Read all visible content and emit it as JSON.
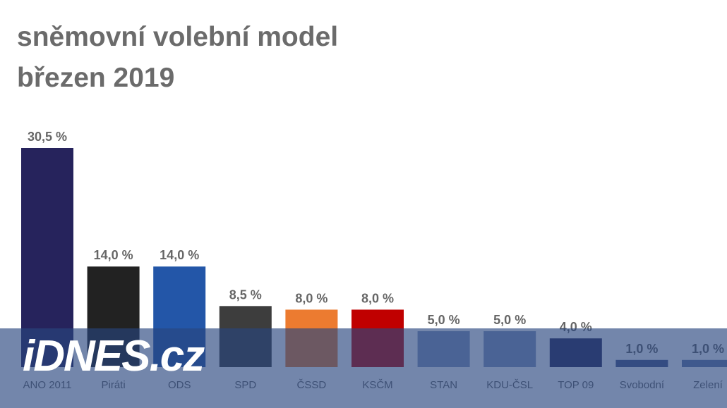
{
  "chart_data": {
    "type": "bar",
    "title": "sněmovní volební model",
    "subtitle": "březen 2019",
    "categories": [
      "ANO 2011",
      "Piráti",
      "ODS",
      "SPD",
      "ČSSD",
      "KSČM",
      "STAN",
      "KDU-ČSL",
      "TOP 09",
      "Svobodní",
      "Zelení"
    ],
    "values": [
      30.5,
      14.0,
      14.0,
      8.5,
      8.0,
      8.0,
      5.0,
      5.0,
      4.0,
      1.0,
      1.0
    ],
    "data_labels": [
      "30,5 %",
      "14,0 %",
      "14,0 %",
      "8,5 %",
      "8,0 %",
      "8,0 %",
      "5,0 %",
      "5,0 %",
      "4,0 %",
      "1,0 %",
      "1,0 %"
    ],
    "colors": [
      "#26235c",
      "#222222",
      "#2356a8",
      "#3d3d3d",
      "#ec7b30",
      "#c00000",
      "#8a9bbf",
      "#8a9bbf",
      "#2c2c5c",
      "#4a5a8a",
      "#6b7fa8"
    ],
    "xlabel": "",
    "ylabel": "",
    "ylim": [
      0,
      32
    ],
    "grid": false,
    "legend": "none"
  },
  "watermark": "iDNES.cz"
}
